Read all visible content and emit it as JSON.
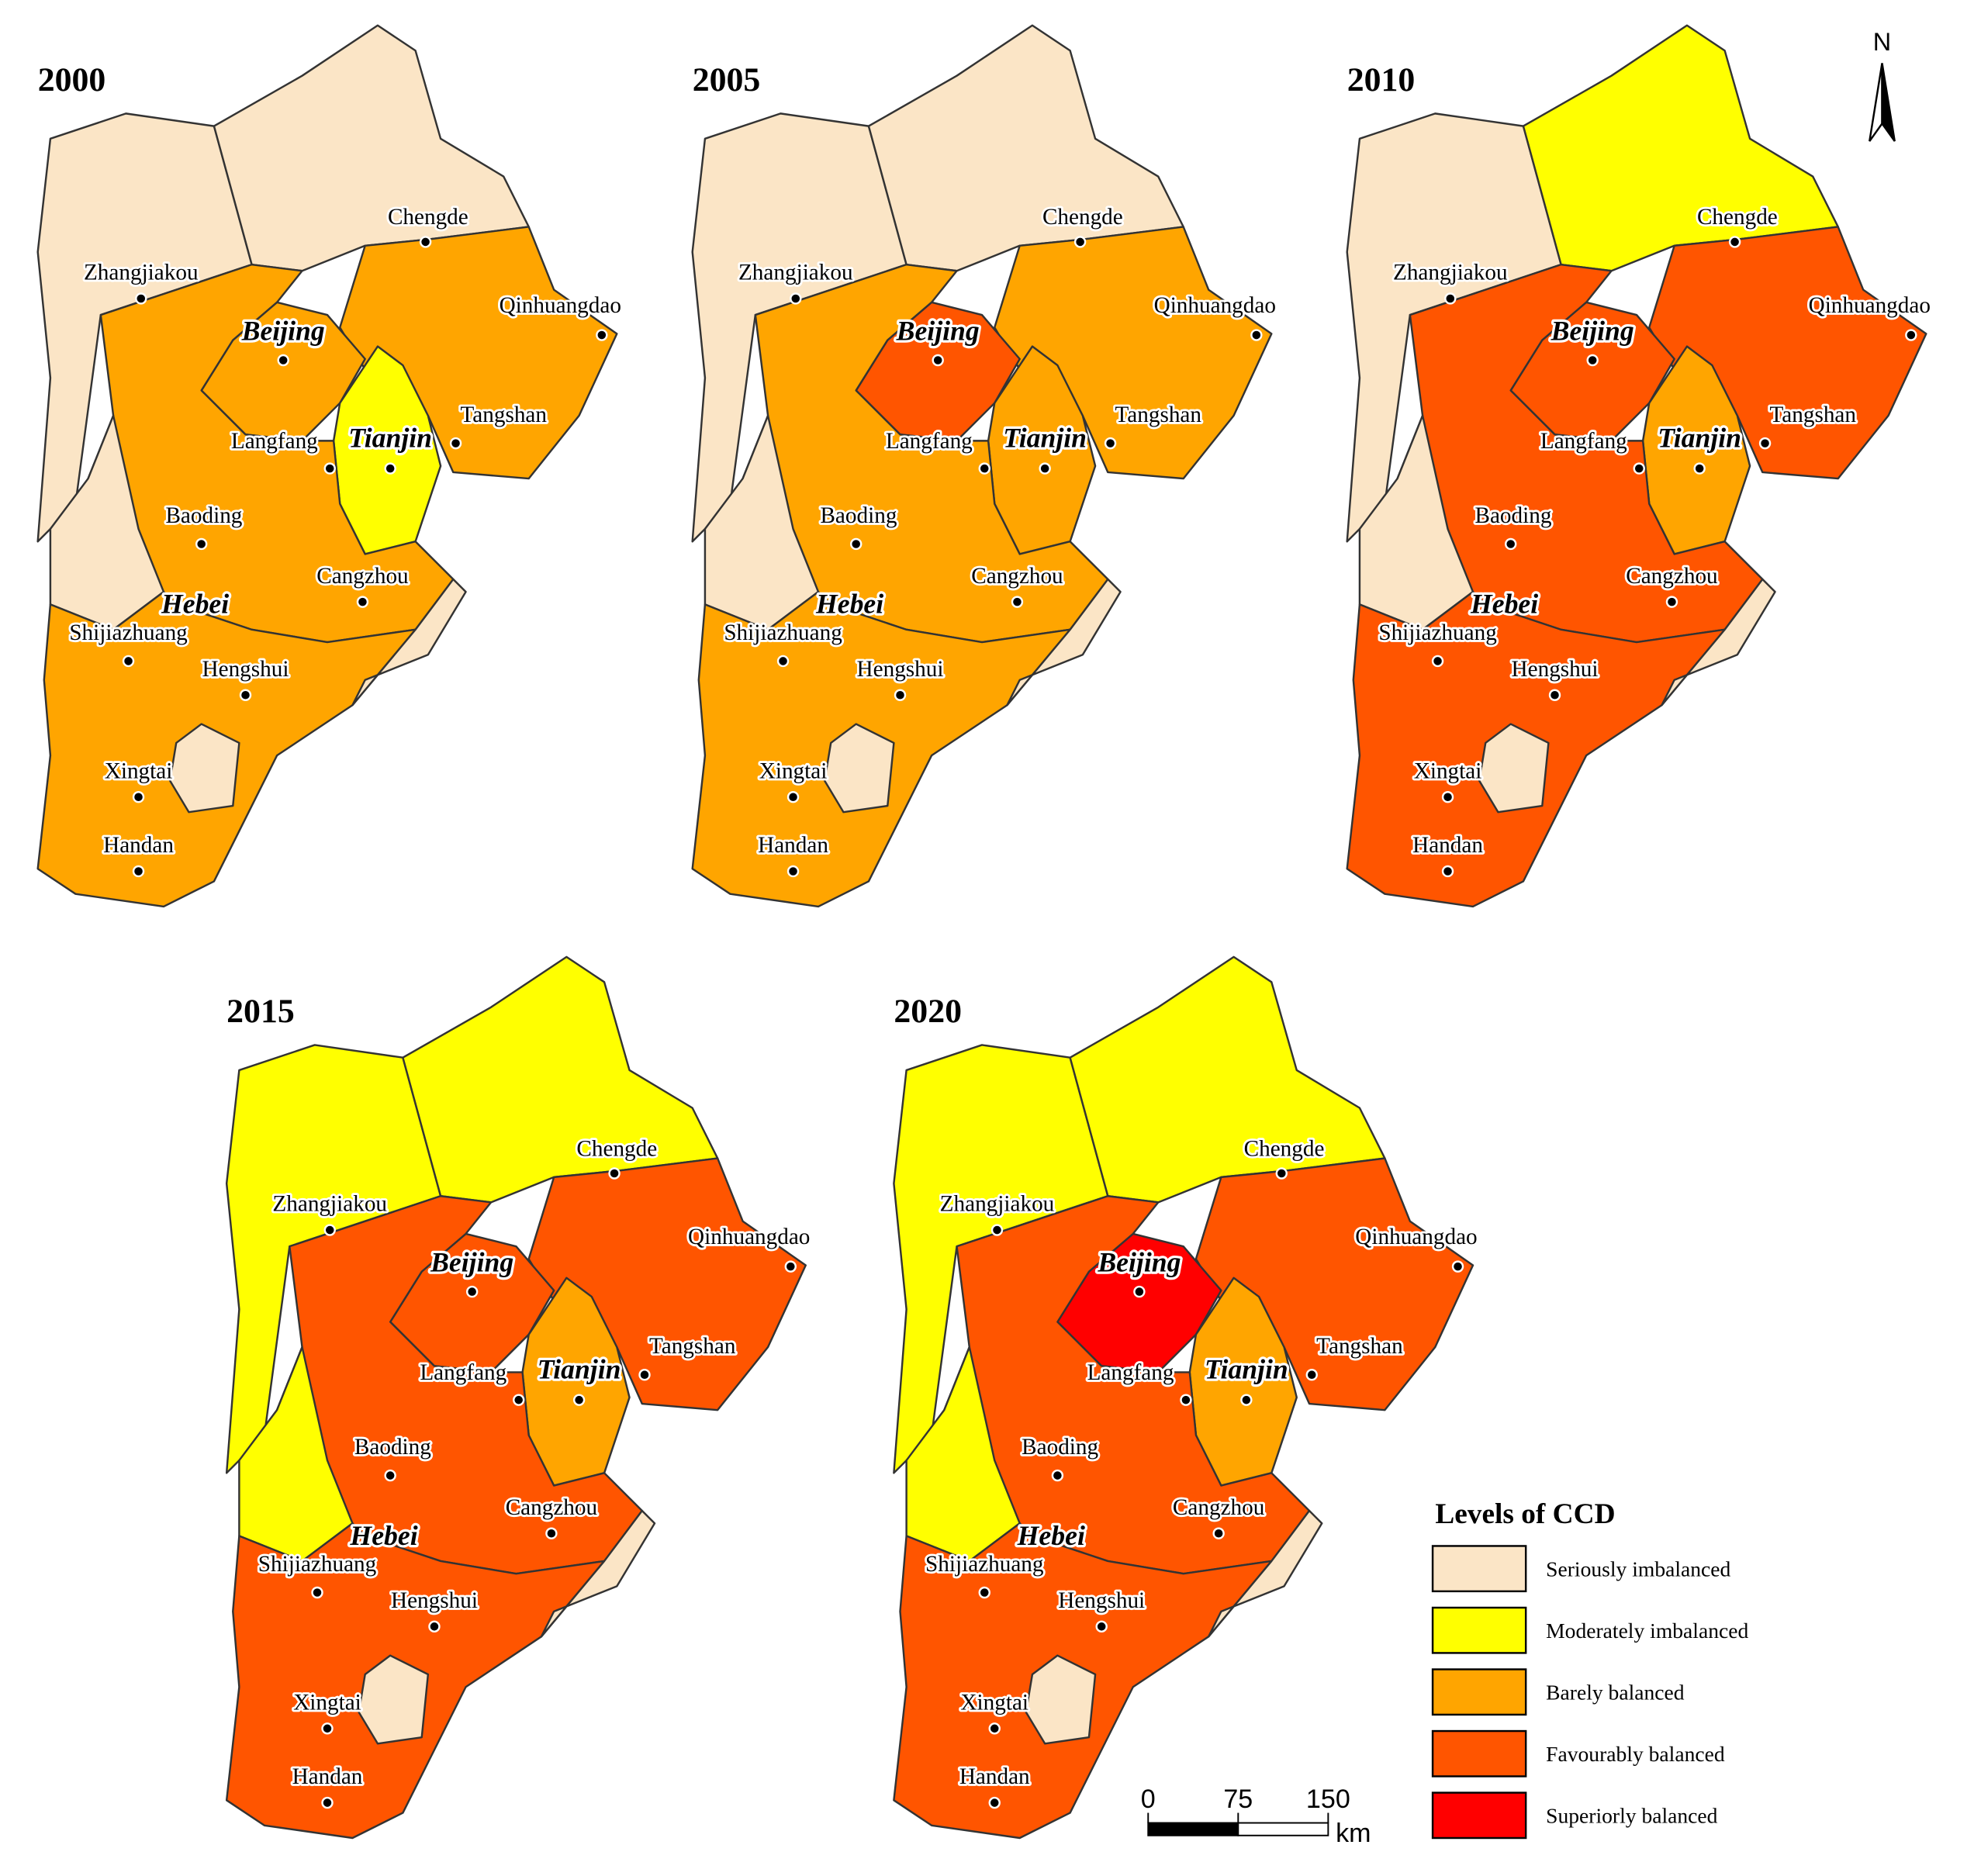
{
  "panels": [
    {
      "title": "2000",
      "fills": [
        0,
        0,
        2,
        2,
        1,
        2,
        0,
        2,
        0,
        0
      ]
    },
    {
      "title": "2005",
      "fills": [
        0,
        0,
        2,
        3,
        2,
        2,
        0,
        2,
        0,
        0
      ]
    },
    {
      "title": "2010",
      "fills": [
        0,
        1,
        3,
        3,
        2,
        3,
        0,
        3,
        0,
        0
      ]
    },
    {
      "title": "2015",
      "fills": [
        1,
        1,
        3,
        3,
        2,
        3,
        1,
        3,
        0,
        0
      ]
    },
    {
      "title": "2020",
      "fills": [
        1,
        1,
        3,
        4,
        2,
        3,
        1,
        3,
        0,
        0
      ]
    }
  ],
  "labels": [
    "Chengde",
    "Zhangjiakou",
    "Qinhuangdao",
    "Beijing",
    "Tangshan",
    "Langfang",
    "Tianjin",
    "Baoding",
    "Cangzhou",
    "Hebei",
    "Shijiazhuang",
    "Hengshui",
    "Xingtai",
    "Handan"
  ],
  "legend": {
    "title": "Levels of CCD",
    "items": [
      {
        "name": "Seriously imbalanced",
        "color": "#fbe5c6"
      },
      {
        "name": "Moderately imbalanced",
        "color": "#ffff00"
      },
      {
        "name": "Barely balanced",
        "color": "#ffa500"
      },
      {
        "name": "Favourably balanced",
        "color": "#ff5500"
      },
      {
        "name": "Superiorly balanced",
        "color": "#ff0000"
      }
    ]
  },
  "scale_bar": {
    "ticks": [
      0,
      75,
      150
    ],
    "unit": "km"
  },
  "north": "N"
}
